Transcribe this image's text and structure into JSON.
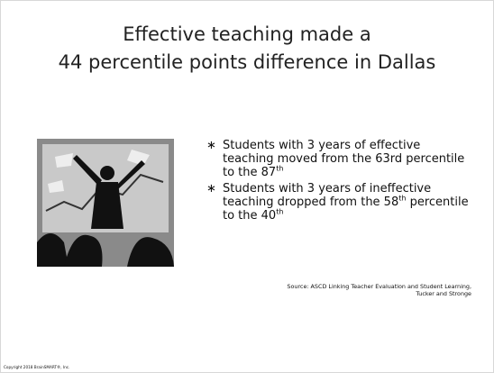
{
  "title": {
    "lines": [
      "Effective teaching made a",
      "44 percentile points difference in Dallas"
    ]
  },
  "bullets": [
    [
      {
        "t": "Students with 3 years of effective teaching moved from the 63rd percentile to the 87"
      },
      {
        "sup": "th"
      }
    ],
    [
      {
        "t": "Students with 3 years of ineffective teaching dropped from the 58"
      },
      {
        "sup": "th"
      },
      {
        "t": " percentile to the 40"
      },
      {
        "sup": "th"
      }
    ]
  ],
  "source": [
    "Source: ASCD Linking Teacher Evaluation and Student Learning,",
    "Tucker and Stronge"
  ],
  "copyright": "Copyright 2018 BrainSMART®, Inc."
}
